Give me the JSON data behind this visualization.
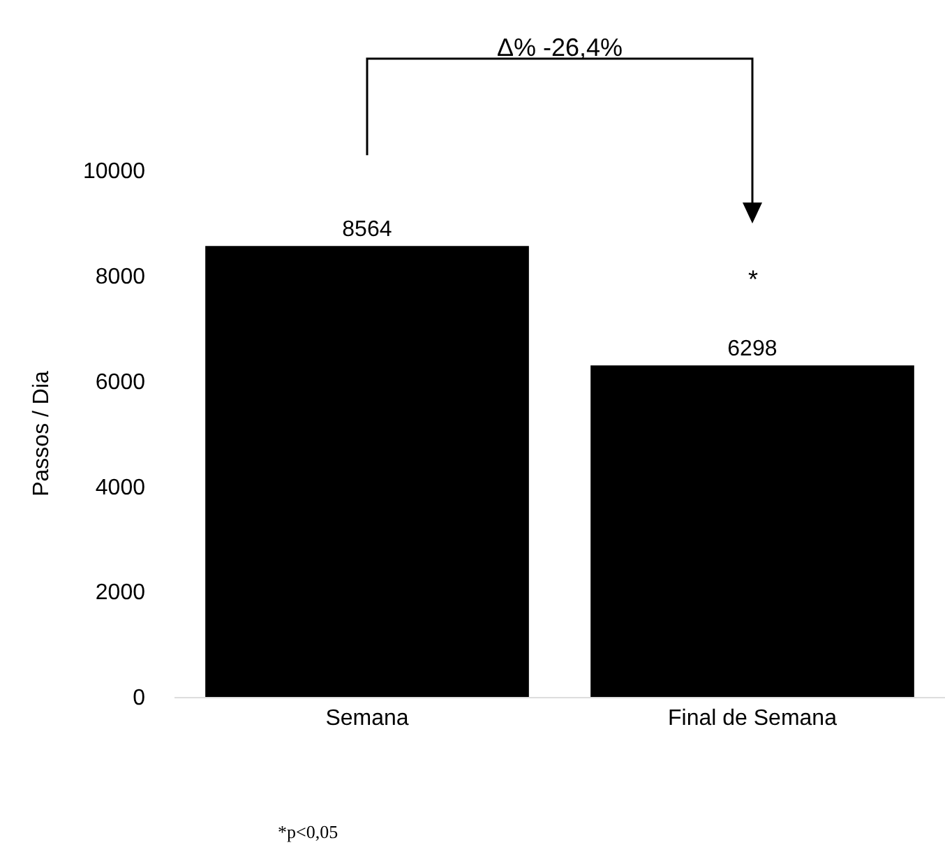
{
  "chart_data": {
    "type": "bar",
    "ylabel": "Passos / Dia",
    "categories": [
      "Semana",
      "Final de Semana"
    ],
    "values": [
      8564,
      6298
    ],
    "color": "#000000",
    "ylim": [
      0,
      10000
    ],
    "yticks": [
      0,
      2000,
      4000,
      6000,
      8000,
      10000
    ],
    "grid": false,
    "data_labels": true,
    "annotations": [
      "Δ% -26,4%",
      "*",
      "*p<0,05"
    ]
  }
}
